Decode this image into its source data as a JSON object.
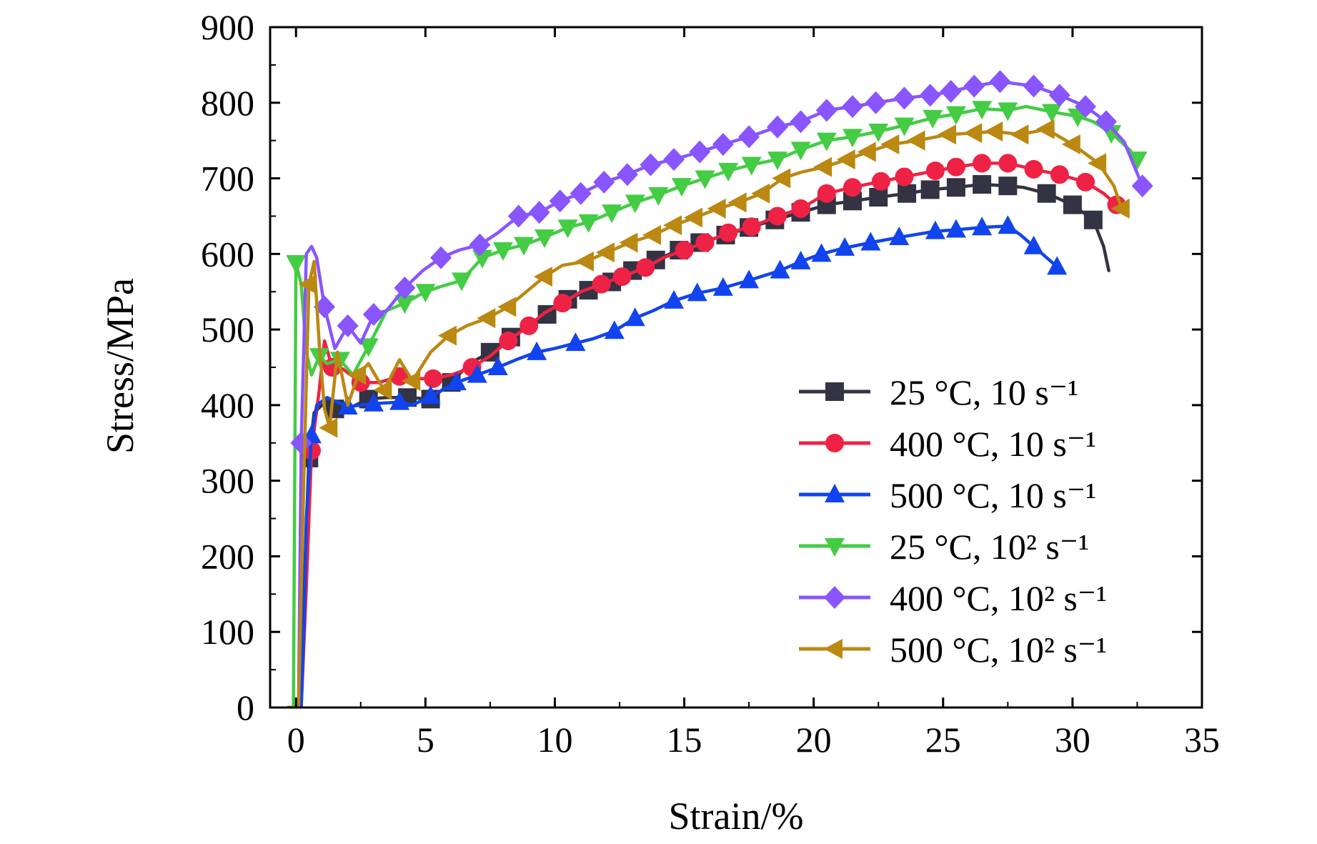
{
  "chart_data": {
    "type": "line",
    "xlabel": "Strain/%",
    "ylabel": "Stress/MPa",
    "xlim": [
      -1,
      35
    ],
    "ylim": [
      0,
      900
    ],
    "xticks": [
      "0",
      "5",
      "10",
      "15",
      "20",
      "25",
      "30",
      "35"
    ],
    "yticks": [
      "0",
      "100",
      "200",
      "300",
      "400",
      "500",
      "600",
      "700",
      "800",
      "900"
    ],
    "grid": false,
    "legend_position": "lower-right",
    "series": [
      {
        "name": "25 °C, 10 s⁻¹",
        "color": "#333344",
        "marker": "square",
        "points": [
          [
            -0.3,
            0
          ],
          [
            0.1,
            0
          ],
          [
            0.3,
            150
          ],
          [
            0.5,
            330
          ],
          [
            0.7,
            390
          ],
          [
            1.0,
            400
          ],
          [
            1.5,
            395
          ],
          [
            2.0,
            395
          ],
          [
            2.8,
            408
          ],
          [
            3.5,
            410
          ],
          [
            4.3,
            410
          ],
          [
            5.2,
            408
          ],
          [
            6.0,
            430
          ],
          [
            6.7,
            455
          ],
          [
            7.5,
            470
          ],
          [
            8.3,
            490
          ],
          [
            9.0,
            505
          ],
          [
            9.7,
            520
          ],
          [
            10.5,
            540
          ],
          [
            11.3,
            552
          ],
          [
            12.2,
            563
          ],
          [
            13.0,
            578
          ],
          [
            13.9,
            592
          ],
          [
            14.8,
            605
          ],
          [
            15.6,
            615
          ],
          [
            16.6,
            625
          ],
          [
            17.5,
            635
          ],
          [
            18.5,
            645
          ],
          [
            19.5,
            655
          ],
          [
            20.5,
            665
          ],
          [
            21.5,
            670
          ],
          [
            22.5,
            675
          ],
          [
            23.6,
            680
          ],
          [
            24.5,
            685
          ],
          [
            25.5,
            688
          ],
          [
            26.5,
            692
          ],
          [
            27.5,
            690
          ],
          [
            28.1,
            688
          ],
          [
            29.0,
            680
          ],
          [
            30.0,
            665
          ],
          [
            30.8,
            645
          ],
          [
            31.2,
            610
          ],
          [
            31.4,
            578
          ]
        ]
      },
      {
        "name": "400 °C, 10 s⁻¹",
        "color": "#ee2244",
        "marker": "circle",
        "points": [
          [
            -0.3,
            0
          ],
          [
            0.2,
            0
          ],
          [
            0.4,
            160
          ],
          [
            0.6,
            340
          ],
          [
            0.9,
            420
          ],
          [
            1.1,
            485
          ],
          [
            1.4,
            450
          ],
          [
            1.8,
            448
          ],
          [
            2.5,
            430
          ],
          [
            3.2,
            430
          ],
          [
            4.0,
            438
          ],
          [
            4.6,
            435
          ],
          [
            5.3,
            435
          ],
          [
            6.0,
            440
          ],
          [
            6.8,
            450
          ],
          [
            7.5,
            465
          ],
          [
            8.2,
            485
          ],
          [
            9.0,
            505
          ],
          [
            9.6,
            522
          ],
          [
            10.3,
            535
          ],
          [
            11.0,
            550
          ],
          [
            11.8,
            560
          ],
          [
            12.6,
            570
          ],
          [
            13.5,
            582
          ],
          [
            14.2,
            595
          ],
          [
            15.0,
            605
          ],
          [
            15.8,
            615
          ],
          [
            16.7,
            628
          ],
          [
            17.6,
            636
          ],
          [
            18.6,
            650
          ],
          [
            19.5,
            660
          ],
          [
            20.5,
            680
          ],
          [
            21.5,
            688
          ],
          [
            22.6,
            696
          ],
          [
            23.5,
            702
          ],
          [
            24.7,
            710
          ],
          [
            25.5,
            715
          ],
          [
            26.5,
            720
          ],
          [
            27.5,
            720
          ],
          [
            28.5,
            712
          ],
          [
            29.5,
            705
          ],
          [
            30.5,
            695
          ],
          [
            31.2,
            680
          ],
          [
            31.7,
            665
          ],
          [
            31.9,
            660
          ]
        ]
      },
      {
        "name": "500 °C, 10 s⁻¹",
        "color": "#1144ee",
        "marker": "triangle-up",
        "points": [
          [
            -0.3,
            0
          ],
          [
            0.2,
            0
          ],
          [
            0.3,
            100
          ],
          [
            0.4,
            250
          ],
          [
            0.6,
            360
          ],
          [
            0.8,
            400
          ],
          [
            1.2,
            410
          ],
          [
            2.0,
            398
          ],
          [
            3.0,
            402
          ],
          [
            4.0,
            404
          ],
          [
            4.5,
            400
          ],
          [
            5.2,
            412
          ],
          [
            6.2,
            430
          ],
          [
            7.0,
            440
          ],
          [
            7.8,
            450
          ],
          [
            8.5,
            460
          ],
          [
            9.3,
            470
          ],
          [
            10.0,
            475
          ],
          [
            10.8,
            482
          ],
          [
            11.5,
            488
          ],
          [
            12.3,
            498
          ],
          [
            13.1,
            515
          ],
          [
            13.8,
            525
          ],
          [
            14.6,
            538
          ],
          [
            15.5,
            548
          ],
          [
            16.5,
            555
          ],
          [
            17.5,
            565
          ],
          [
            18.7,
            578
          ],
          [
            19.5,
            590
          ],
          [
            20.3,
            600
          ],
          [
            21.2,
            608
          ],
          [
            22.2,
            615
          ],
          [
            23.3,
            622
          ],
          [
            24.7,
            630
          ],
          [
            25.5,
            632
          ],
          [
            26.5,
            635
          ],
          [
            27.5,
            637
          ],
          [
            28.0,
            625
          ],
          [
            28.5,
            610
          ],
          [
            29.0,
            595
          ],
          [
            29.4,
            583
          ]
        ]
      },
      {
        "name": "25 °C, 10² s⁻¹",
        "color": "#44cc44",
        "marker": "triangle-down",
        "points": [
          [
            -0.3,
            0
          ],
          [
            -0.1,
            0
          ],
          [
            0.0,
            588
          ],
          [
            0.2,
            560
          ],
          [
            0.4,
            470
          ],
          [
            0.6,
            440
          ],
          [
            0.9,
            465
          ],
          [
            1.2,
            455
          ],
          [
            1.7,
            460
          ],
          [
            2.2,
            440
          ],
          [
            2.8,
            478
          ],
          [
            3.5,
            525
          ],
          [
            4.2,
            535
          ],
          [
            5.0,
            550
          ],
          [
            5.7,
            558
          ],
          [
            6.4,
            565
          ],
          [
            7.2,
            595
          ],
          [
            8.0,
            605
          ],
          [
            8.8,
            612
          ],
          [
            9.6,
            622
          ],
          [
            10.5,
            635
          ],
          [
            11.3,
            642
          ],
          [
            12.2,
            655
          ],
          [
            13.1,
            668
          ],
          [
            14.0,
            678
          ],
          [
            14.9,
            690
          ],
          [
            15.8,
            700
          ],
          [
            16.7,
            710
          ],
          [
            17.6,
            718
          ],
          [
            18.6,
            725
          ],
          [
            19.5,
            738
          ],
          [
            20.5,
            750
          ],
          [
            21.5,
            755
          ],
          [
            22.5,
            762
          ],
          [
            23.5,
            770
          ],
          [
            24.6,
            780
          ],
          [
            25.5,
            785
          ],
          [
            26.5,
            792
          ],
          [
            27.5,
            790
          ],
          [
            28.2,
            795
          ],
          [
            29.2,
            788
          ],
          [
            30.2,
            782
          ],
          [
            30.8,
            775
          ],
          [
            31.5,
            760
          ],
          [
            32.2,
            738
          ],
          [
            32.5,
            725
          ]
        ]
      },
      {
        "name": "400 °C, 10² s⁻¹",
        "color": "#8855ff",
        "marker": "diamond",
        "points": [
          [
            -0.3,
            0
          ],
          [
            0.1,
            0
          ],
          [
            0.2,
            350
          ],
          [
            0.4,
            600
          ],
          [
            0.6,
            610
          ],
          [
            0.8,
            595
          ],
          [
            1.1,
            530
          ],
          [
            1.5,
            475
          ],
          [
            2.0,
            505
          ],
          [
            2.5,
            482
          ],
          [
            3.0,
            520
          ],
          [
            3.5,
            525
          ],
          [
            4.2,
            555
          ],
          [
            4.9,
            578
          ],
          [
            5.6,
            595
          ],
          [
            6.3,
            605
          ],
          [
            7.1,
            612
          ],
          [
            7.8,
            628
          ],
          [
            8.6,
            650
          ],
          [
            9.4,
            655
          ],
          [
            10.2,
            670
          ],
          [
            11.0,
            680
          ],
          [
            11.9,
            695
          ],
          [
            12.8,
            705
          ],
          [
            13.7,
            718
          ],
          [
            14.6,
            725
          ],
          [
            15.6,
            735
          ],
          [
            16.5,
            745
          ],
          [
            17.5,
            755
          ],
          [
            18.6,
            768
          ],
          [
            19.5,
            775
          ],
          [
            20.5,
            790
          ],
          [
            21.5,
            795
          ],
          [
            22.4,
            800
          ],
          [
            23.5,
            806
          ],
          [
            24.5,
            810
          ],
          [
            25.3,
            815
          ],
          [
            26.2,
            822
          ],
          [
            27.2,
            828
          ],
          [
            28.5,
            822
          ],
          [
            29.5,
            810
          ],
          [
            30.5,
            795
          ],
          [
            31.3,
            775
          ],
          [
            32.0,
            748
          ],
          [
            32.7,
            690
          ]
        ]
      },
      {
        "name": "500 °C, 10² s⁻¹",
        "color": "#bb8811",
        "marker": "triangle-left",
        "points": [
          [
            -0.3,
            0
          ],
          [
            0.1,
            0
          ],
          [
            0.3,
            300
          ],
          [
            0.5,
            560
          ],
          [
            0.7,
            590
          ],
          [
            0.9,
            480
          ],
          [
            1.1,
            395
          ],
          [
            1.3,
            370
          ],
          [
            1.6,
            470
          ],
          [
            2.0,
            400
          ],
          [
            2.4,
            440
          ],
          [
            2.8,
            455
          ],
          [
            3.4,
            420
          ],
          [
            4.0,
            460
          ],
          [
            4.5,
            432
          ],
          [
            5.2,
            470
          ],
          [
            5.9,
            492
          ],
          [
            6.6,
            505
          ],
          [
            7.4,
            515
          ],
          [
            8.2,
            530
          ],
          [
            8.9,
            550
          ],
          [
            9.6,
            570
          ],
          [
            10.3,
            585
          ],
          [
            11.2,
            590
          ],
          [
            12.0,
            602
          ],
          [
            12.9,
            615
          ],
          [
            13.8,
            625
          ],
          [
            14.6,
            638
          ],
          [
            15.4,
            648
          ],
          [
            16.3,
            660
          ],
          [
            17.1,
            668
          ],
          [
            18.0,
            680
          ],
          [
            18.8,
            700
          ],
          [
            19.5,
            708
          ],
          [
            20.4,
            715
          ],
          [
            21.3,
            725
          ],
          [
            22.1,
            735
          ],
          [
            23.0,
            745
          ],
          [
            24.0,
            750
          ],
          [
            25.2,
            758
          ],
          [
            26.2,
            760
          ],
          [
            27.0,
            762
          ],
          [
            28.0,
            758
          ],
          [
            29.0,
            765
          ],
          [
            30.0,
            745
          ],
          [
            31.0,
            720
          ],
          [
            31.6,
            690
          ],
          [
            31.9,
            660
          ]
        ]
      }
    ]
  }
}
